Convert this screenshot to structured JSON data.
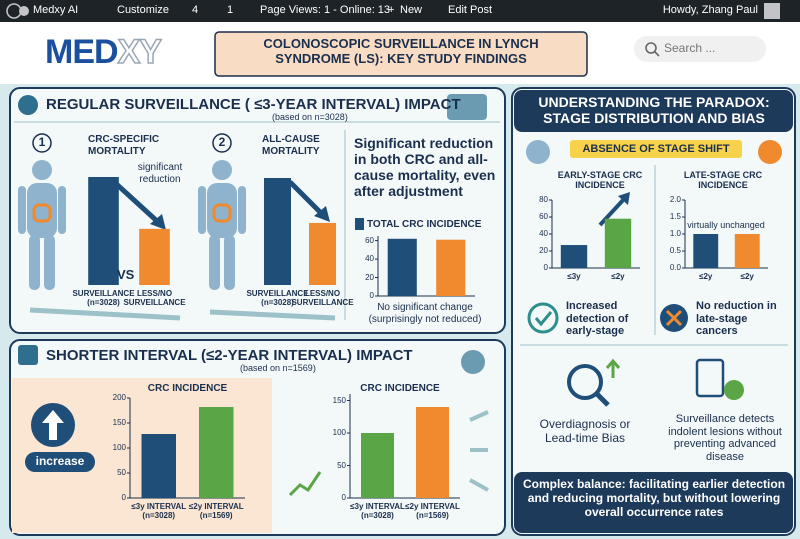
{
  "admin_bar": {
    "items": [
      "Medxy AI",
      "Customize",
      "4",
      "1",
      "Page Views: 1 - Online: 13",
      "New",
      "Edit Post"
    ],
    "greeting": "Howdy, Zhang Paul"
  },
  "header": {
    "logo": [
      "MED",
      "XY"
    ],
    "title": "COLONOSCOPIC SURVEILLANCE IN LYNCH SYNDROME (LS): KEY STUDY FINDINGS",
    "search_placeholder": "Search ..."
  },
  "regular_surveillance": {
    "title": "REGULAR SURVEILLANCE ( ≤3-YEAR INTERVAL) IMPACT",
    "subtitle": "(based on n=3028)",
    "panels": [
      {
        "number": "1",
        "label": "CRC-SPECIFIC MORTALITY",
        "annotation": "significant reduction",
        "vs": "VS",
        "chart": {
          "type": "bar",
          "categories": [
            "SURVEILLANCE (n=3028)",
            "LESS/NO SURVEILLANCE"
          ],
          "values": [
            100,
            52
          ],
          "colors": [
            "#1f4e79",
            "#ef8a2e"
          ]
        }
      },
      {
        "number": "2",
        "label": "ALL-CAUSE MORTALITY",
        "chart": {
          "type": "bar",
          "categories": [
            "SURVEILLANCE (n=3028)",
            "LESS/NO SURVEILLANCE"
          ],
          "values": [
            100,
            58
          ],
          "colors": [
            "#1f4e79",
            "#ef8a2e"
          ]
        }
      }
    ],
    "summary": "Significant reduction in both CRC and all-cause mortality, even after adjustment",
    "total_incidence": {
      "type": "bar",
      "title": "TOTAL CRC INCIDENCE",
      "values": [
        62,
        61
      ],
      "colors": [
        "#1f4e79",
        "#ef8a2e"
      ],
      "ylim": [
        0,
        65
      ],
      "yticks": [
        0,
        20,
        40,
        60
      ]
    },
    "note": "No significant change (surprisingly not reduced)"
  },
  "shorter_interval": {
    "title": "SHORTER INTERVAL (≤2-YEAR INTERVAL) IMPACT",
    "subtitle": "(based on n=1569)",
    "badge": "increase",
    "charts": [
      {
        "type": "bar",
        "title": "CRC INCIDENCE",
        "categories": [
          "≤3y INTERVAL (n=3028)",
          "≤2y INTERVAL (n=1569)"
        ],
        "values": [
          128,
          182
        ],
        "colors": [
          "#1f4e79",
          "#5aa545"
        ],
        "ylim": [
          0,
          200
        ],
        "yticks": [
          0,
          50,
          100,
          150,
          200
        ]
      },
      {
        "type": "bar",
        "title": "CRC INCIDENCE",
        "categories": [
          "≤3y INTERVAL (n=3028)",
          "≤2y INTERVAL (n=1569)"
        ],
        "values": [
          100,
          140
        ],
        "colors": [
          "#5aa545",
          "#ef8a2e"
        ],
        "ylim": [
          0,
          160
        ],
        "yticks": [
          0,
          50,
          100,
          150
        ]
      }
    ]
  },
  "paradox": {
    "title": "UNDERSTANDING THE PARADOX: STAGE DISTRIBUTION AND BIAS",
    "banner": "ABSENCE OF STAGE SHIFT",
    "charts": [
      {
        "type": "bar",
        "title": "EARLY-STAGE CRC INCIDENCE",
        "categories": [
          "≤3y",
          "≤2y"
        ],
        "values": [
          27,
          58
        ],
        "colors": [
          "#1f4e79",
          "#5aa545"
        ],
        "ylim": [
          0,
          80
        ],
        "yticks": [
          0,
          20,
          40,
          60,
          80
        ]
      },
      {
        "type": "bar",
        "title": "LATE-STAGE CRC INCIDENCE",
        "annotation": "virtually unchanged",
        "categories": [
          "≤2y",
          "≤2y"
        ],
        "values": [
          1,
          1
        ],
        "colors": [
          "#1f4e79",
          "#ef8a2e"
        ],
        "ylim": [
          0,
          2
        ],
        "yticks": [
          {
            "value": 0,
            "label": "0.0"
          },
          0.5,
          {
            "value": 1,
            "label": "1.0"
          },
          1.5,
          {
            "value": 2,
            "label": "2.0"
          }
        ]
      }
    ],
    "points": [
      "Increased detection of early-stage",
      "No reduction in late-stage cancers",
      "Overdiagnosis or Lead-time Bias",
      "Surveillance detects indolent lesions without preventing advanced disease"
    ],
    "conclusion": "Complex balance: facilitating earlier detection and reducing mortality, but without lowering overall occurrence rates"
  }
}
